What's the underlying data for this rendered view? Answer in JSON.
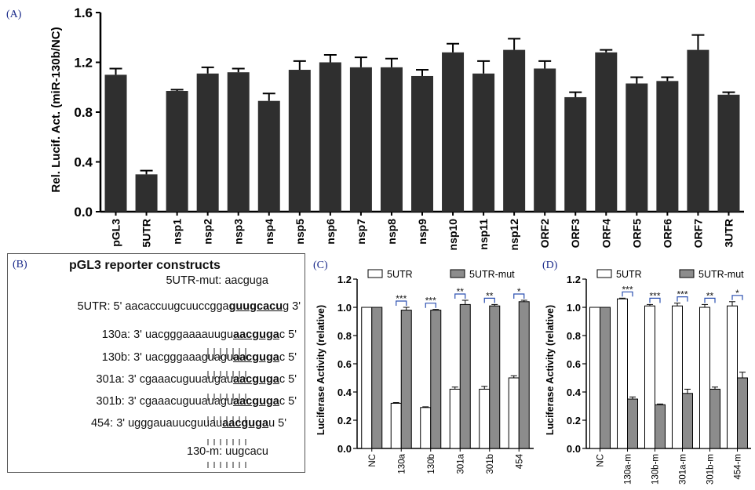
{
  "panelA": {
    "letter": "(A)",
    "chart_data": {
      "type": "bar",
      "ylabel": "Rel. Lucif. Act. (miR-130b/NC)",
      "ylim": [
        0,
        1.6
      ],
      "yticks": [
        "0.0",
        "0.4",
        "0.8",
        "1.2",
        "1.6"
      ],
      "categories": [
        "pGL3",
        "5UTR",
        "nsp1",
        "nsp2",
        "nsp3",
        "nsp4",
        "nsp5",
        "nsp6",
        "nsp7",
        "nsp8",
        "nsp9",
        "nsp10",
        "nsp11",
        "nsp12",
        "ORF2",
        "ORF3",
        "ORF4",
        "ORF5",
        "ORF6",
        "ORF7",
        "3UTR"
      ],
      "values": [
        1.1,
        0.3,
        0.97,
        1.11,
        1.12,
        0.89,
        1.14,
        1.2,
        1.16,
        1.16,
        1.09,
        1.28,
        1.11,
        1.3,
        1.15,
        0.92,
        1.28,
        1.03,
        1.05,
        1.3,
        0.94
      ],
      "errors": [
        0.05,
        0.03,
        0.01,
        0.05,
        0.03,
        0.06,
        0.07,
        0.06,
        0.08,
        0.07,
        0.05,
        0.07,
        0.1,
        0.09,
        0.06,
        0.04,
        0.02,
        0.05,
        0.03,
        0.12,
        0.02
      ],
      "bar_color": "#2f2f2f"
    }
  },
  "panelB": {
    "letter": "(B)",
    "title": "pGL3 reporter constructs",
    "lines": [
      {
        "pre": "5UTR-mut: aacguga",
        "bold": "",
        "post": ""
      },
      {
        "pre": "5UTR: 5' aacaccuugcuuccgga",
        "bold": "guugcacu",
        "post": "g 3'"
      },
      {
        "pre": "130a: 3' uacgggaaaauugu",
        "bold": "aacguga",
        "post": "c 5'"
      },
      {
        "pre": "130b: 3' uacgggaaaguagu",
        "bold": "aacguga",
        "post": "c 5'"
      },
      {
        "pre": "301a: 3' cgaaacuguuaugau",
        "bold": "aacguga",
        "post": "c 5'"
      },
      {
        "pre": "301b: 3' cgaaacuguuauagu",
        "bold": "aacguga",
        "post": "c 5'"
      },
      {
        "pre": "454: 3' ugggauauucguuau",
        "bold": "aacguga",
        "post": "u 5'"
      },
      {
        "pre": "130-m: uugcacu",
        "bold": "",
        "post": ""
      }
    ]
  },
  "panelC": {
    "letter": "(C)",
    "chart_data": {
      "type": "bar",
      "ylabel": "Luciferase Activity (relative)",
      "ylim": [
        0,
        1.2
      ],
      "yticks": [
        "0.0",
        "0.2",
        "0.4",
        "0.6",
        "0.8",
        "1.0",
        "1.2"
      ],
      "categories": [
        "NC",
        "130a",
        "130b",
        "301a",
        "301b",
        "454"
      ],
      "series": [
        {
          "name": "5UTR",
          "values": [
            1.0,
            0.32,
            0.29,
            0.42,
            0.42,
            0.5
          ],
          "errors": [
            0,
            0.005,
            0.005,
            0.015,
            0.02,
            0.015
          ],
          "color": "#ffffff"
        },
        {
          "name": "5UTR-mut",
          "values": [
            1.0,
            0.98,
            0.98,
            1.02,
            1.01,
            1.04
          ],
          "errors": [
            0,
            0.02,
            0.005,
            0.03,
            0.01,
            0.01
          ],
          "color": "#8c8c8c"
        }
      ],
      "significance": [
        "",
        "***",
        "***",
        "**",
        "**",
        "*"
      ]
    }
  },
  "panelD": {
    "letter": "(D)",
    "chart_data": {
      "type": "bar",
      "ylabel": "Luciferase Activity (relative)",
      "ylim": [
        0,
        1.2
      ],
      "yticks": [
        "0.0",
        "0.2",
        "0.4",
        "0.6",
        "0.8",
        "1.0",
        "1.2"
      ],
      "categories": [
        "NC",
        "130a-m",
        "130b-m",
        "301a-m",
        "301b-m",
        "454-m"
      ],
      "series": [
        {
          "name": "5UTR",
          "values": [
            1.0,
            1.06,
            1.01,
            1.01,
            1.0,
            1.01
          ],
          "errors": [
            0,
            0.005,
            0.01,
            0.02,
            0.02,
            0.03
          ],
          "color": "#ffffff"
        },
        {
          "name": "5UTR-mut",
          "values": [
            1.0,
            0.35,
            0.31,
            0.39,
            0.42,
            0.5
          ],
          "errors": [
            0,
            0.015,
            0.005,
            0.03,
            0.015,
            0.04
          ],
          "color": "#8c8c8c"
        }
      ],
      "significance": [
        "",
        "***",
        "***",
        "***",
        "**",
        "*"
      ]
    }
  }
}
